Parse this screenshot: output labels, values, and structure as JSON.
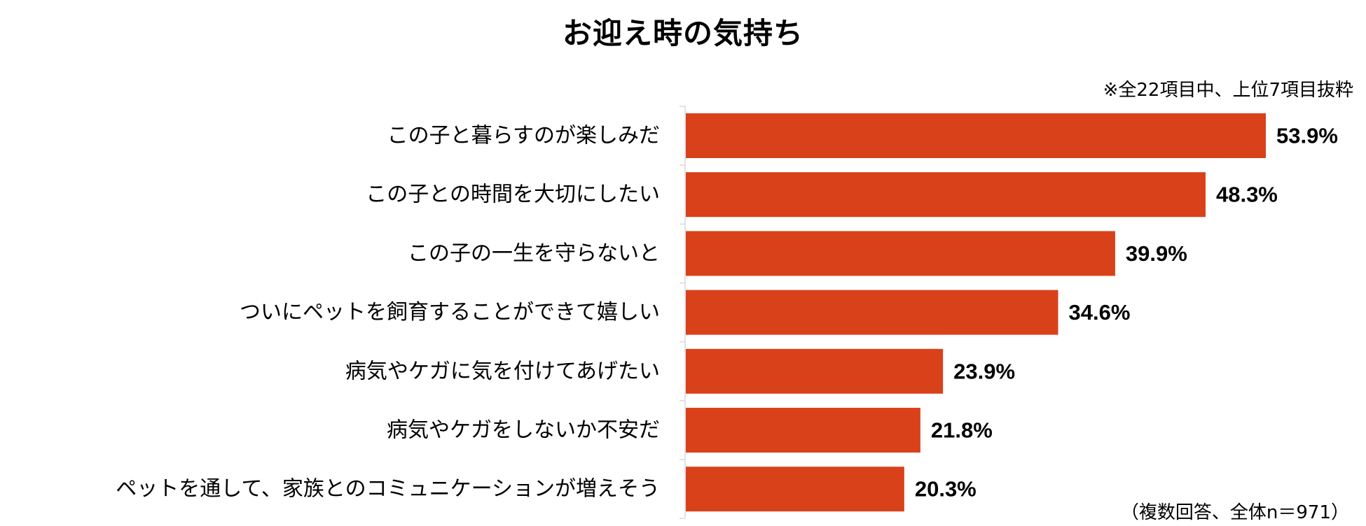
{
  "chart_data": {
    "type": "bar",
    "orientation": "horizontal",
    "title": "お迎え時の気持ち",
    "note": "※全22項目中、上位7項目抜粋",
    "footnote": "（複数回答、全体n＝971）",
    "categories": [
      "この子と暮らすのが楽しみだ",
      "この子との時間を大切にしたい",
      "この子の一生を守らないと",
      "ついにペットを飼育することができて嬉しい",
      "病気やケガに気を付けてあげたい",
      "病気やケガをしないか不安だ",
      "ペットを通して、家族とのコミュニケーションが増えそう"
    ],
    "values": [
      53.9,
      48.3,
      39.9,
      34.6,
      23.9,
      21.8,
      20.3
    ],
    "value_labels": [
      "53.9%",
      "48.3%",
      "39.9%",
      "34.6%",
      "23.9%",
      "21.8%",
      "20.3%"
    ],
    "unit": "%",
    "xlim": [
      0,
      53.9
    ],
    "grid": false,
    "legend": "none",
    "bar_color": "#D9411A",
    "axis_color": "#D9D9D9"
  }
}
